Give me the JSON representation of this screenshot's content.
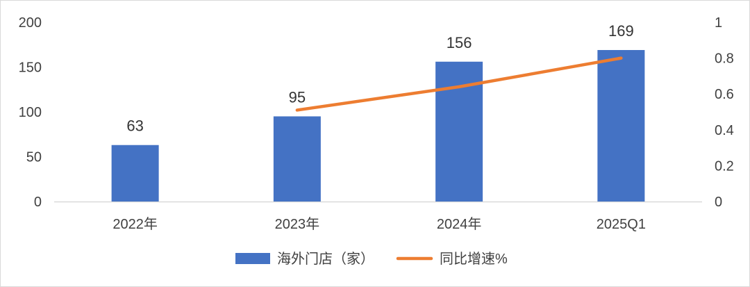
{
  "chart_data": {
    "type": "bar",
    "categories": [
      "2022年",
      "2023年",
      "2024年",
      "2025Q1"
    ],
    "series": [
      {
        "name": "海外门店（家）",
        "type": "bar",
        "axis": "left",
        "color": "#4472C4",
        "values": [
          63,
          95,
          156,
          169
        ],
        "data_labels": [
          "63",
          "95",
          "156",
          "169"
        ]
      },
      {
        "name": "同比增速%",
        "type": "line",
        "axis": "right",
        "color": "#ED7D31",
        "values": [
          null,
          0.51,
          0.64,
          0.8
        ]
      }
    ],
    "y_left": {
      "lim": [
        0,
        200
      ],
      "ticks": [
        "0",
        "50",
        "100",
        "150",
        "200"
      ]
    },
    "y_right": {
      "lim": [
        0,
        1
      ],
      "ticks": [
        "0",
        "0.2",
        "0.4",
        "0.6",
        "0.8",
        "1"
      ]
    },
    "grid": false,
    "legend": "bottom-center"
  }
}
